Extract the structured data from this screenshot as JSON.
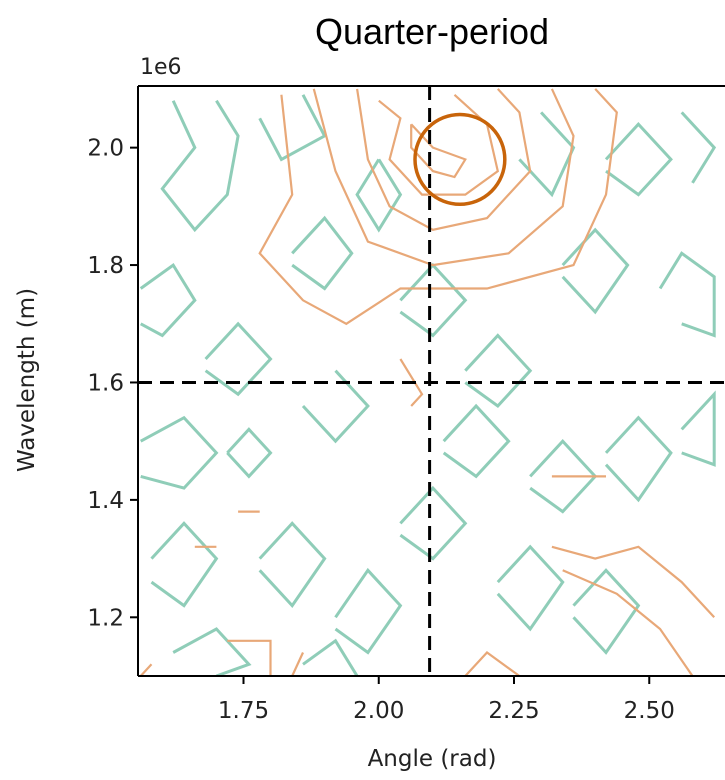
{
  "chart_data": {
    "type": "contour",
    "title": "Quarter-period",
    "xlabel": "Angle (rad)",
    "ylabel": "Wavelength (m)",
    "y_offset_label": "1e6",
    "xlim": [
      1.555,
      2.64
    ],
    "ylim": [
      1100000,
      2105000
    ],
    "x_ticks": [
      1.75,
      2.0,
      2.25,
      2.5
    ],
    "x_tick_labels": [
      "1.75",
      "2.00",
      "2.25",
      "2.50"
    ],
    "y_ticks": [
      1200000,
      1400000,
      1600000,
      1800000,
      2000000
    ],
    "y_tick_labels": [
      "1.2",
      "1.4",
      "1.6",
      "1.8",
      "2.0"
    ],
    "reference_lines": {
      "vertical_x": 2.094,
      "horizontal_y": 1600000,
      "style": "dashed",
      "color": "#000000"
    },
    "highlight_circle": {
      "x": 2.15,
      "y": 1980000,
      "radius_x": 0.083,
      "color": "#c8640a"
    },
    "series": [
      {
        "color": "#8fcdb8",
        "levels": [
          [
            [
              1.62,
              2.08
            ],
            [
              1.66,
              2.0
            ],
            [
              1.6,
              1.93
            ],
            [
              1.66,
              1.86
            ],
            [
              1.72,
              1.92
            ],
            [
              1.74,
              2.02
            ],
            [
              1.7,
              2.08
            ]
          ],
          [
            [
              1.78,
              2.05
            ],
            [
              1.82,
              1.98
            ],
            [
              1.9,
              2.02
            ],
            [
              1.86,
              2.09
            ]
          ],
          [
            [
              1.56,
              1.76
            ],
            [
              1.62,
              1.8
            ],
            [
              1.66,
              1.74
            ],
            [
              1.6,
              1.68
            ],
            [
              1.56,
              1.7
            ]
          ],
          [
            [
              1.68,
              1.64
            ],
            [
              1.74,
              1.7
            ],
            [
              1.8,
              1.64
            ],
            [
              1.74,
              1.58
            ],
            [
              1.68,
              1.62
            ]
          ],
          [
            [
              1.84,
              1.82
            ],
            [
              1.9,
              1.88
            ],
            [
              1.95,
              1.82
            ],
            [
              1.9,
              1.76
            ],
            [
              1.84,
              1.8
            ]
          ],
          [
            [
              2.3,
              2.06
            ],
            [
              2.36,
              2.0
            ],
            [
              2.32,
              1.92
            ],
            [
              2.26,
              1.98
            ]
          ],
          [
            [
              2.42,
              1.98
            ],
            [
              2.48,
              2.04
            ],
            [
              2.54,
              1.98
            ],
            [
              2.48,
              1.92
            ],
            [
              2.42,
              1.96
            ]
          ],
          [
            [
              2.56,
              2.06
            ],
            [
              2.62,
              2.0
            ],
            [
              2.58,
              1.94
            ]
          ],
          [
            [
              2.34,
              1.8
            ],
            [
              2.4,
              1.86
            ],
            [
              2.46,
              1.8
            ],
            [
              2.4,
              1.72
            ],
            [
              2.34,
              1.78
            ]
          ],
          [
            [
              2.52,
              1.76
            ],
            [
              2.56,
              1.82
            ],
            [
              2.62,
              1.78
            ],
            [
              2.62,
              1.68
            ],
            [
              2.56,
              1.7
            ]
          ],
          [
            [
              2.04,
              1.74
            ],
            [
              2.1,
              1.8
            ],
            [
              2.16,
              1.74
            ],
            [
              2.1,
              1.68
            ],
            [
              2.04,
              1.72
            ]
          ],
          [
            [
              1.56,
              1.5
            ],
            [
              1.64,
              1.54
            ],
            [
              1.7,
              1.48
            ],
            [
              1.64,
              1.42
            ],
            [
              1.56,
              1.44
            ]
          ],
          [
            [
              1.72,
              1.48
            ],
            [
              1.76,
              1.44
            ],
            [
              1.8,
              1.48
            ],
            [
              1.76,
              1.52
            ],
            [
              1.72,
              1.48
            ]
          ],
          [
            [
              1.86,
              1.56
            ],
            [
              1.92,
              1.5
            ],
            [
              1.98,
              1.56
            ],
            [
              1.92,
              1.62
            ]
          ],
          [
            [
              1.58,
              1.3
            ],
            [
              1.64,
              1.36
            ],
            [
              1.7,
              1.3
            ],
            [
              1.64,
              1.22
            ],
            [
              1.58,
              1.26
            ]
          ],
          [
            [
              1.78,
              1.3
            ],
            [
              1.84,
              1.36
            ],
            [
              1.9,
              1.3
            ],
            [
              1.84,
              1.22
            ],
            [
              1.78,
              1.28
            ]
          ],
          [
            [
              1.92,
              1.2
            ],
            [
              1.98,
              1.28
            ],
            [
              2.04,
              1.22
            ],
            [
              1.98,
              1.14
            ],
            [
              1.92,
              1.18
            ]
          ],
          [
            [
              2.04,
              1.36
            ],
            [
              2.1,
              1.42
            ],
            [
              2.16,
              1.36
            ],
            [
              2.1,
              1.3
            ],
            [
              2.04,
              1.34
            ]
          ],
          [
            [
              2.12,
              1.5
            ],
            [
              2.18,
              1.56
            ],
            [
              2.24,
              1.5
            ],
            [
              2.18,
              1.44
            ],
            [
              2.12,
              1.48
            ]
          ],
          [
            [
              2.28,
              1.44
            ],
            [
              2.34,
              1.5
            ],
            [
              2.4,
              1.44
            ],
            [
              2.34,
              1.38
            ],
            [
              2.28,
              1.42
            ]
          ],
          [
            [
              2.42,
              1.48
            ],
            [
              2.48,
              1.54
            ],
            [
              2.54,
              1.48
            ],
            [
              2.48,
              1.4
            ],
            [
              2.42,
              1.46
            ]
          ],
          [
            [
              2.56,
              1.52
            ],
            [
              2.62,
              1.58
            ],
            [
              2.62,
              1.46
            ],
            [
              2.56,
              1.48
            ]
          ],
          [
            [
              2.22,
              1.26
            ],
            [
              2.28,
              1.32
            ],
            [
              2.34,
              1.26
            ],
            [
              2.28,
              1.18
            ],
            [
              2.22,
              1.24
            ]
          ],
          [
            [
              2.36,
              1.22
            ],
            [
              2.42,
              1.28
            ],
            [
              2.48,
              1.22
            ],
            [
              2.42,
              1.14
            ],
            [
              2.36,
              1.2
            ]
          ],
          [
            [
              1.62,
              1.14
            ],
            [
              1.7,
              1.18
            ],
            [
              1.76,
              1.12
            ],
            [
              1.7,
              1.1
            ]
          ],
          [
            [
              1.86,
              1.12
            ],
            [
              1.92,
              1.16
            ],
            [
              1.96,
              1.1
            ]
          ],
          [
            [
              2.0,
              1.98
            ],
            [
              2.04,
              1.92
            ],
            [
              2.0,
              1.86
            ],
            [
              1.96,
              1.92
            ],
            [
              2.0,
              1.98
            ]
          ],
          [
            [
              2.16,
              1.62
            ],
            [
              2.22,
              1.68
            ],
            [
              2.28,
              1.62
            ],
            [
              2.22,
              1.56
            ],
            [
              2.16,
              1.6
            ]
          ]
        ]
      },
      {
        "color": "#e8a878",
        "levels": [
          [
            [
              2.06,
              2.04
            ],
            [
              2.1,
              2.0
            ],
            [
              2.16,
              1.98
            ],
            [
              2.14,
              1.95
            ],
            [
              2.1,
              1.96
            ],
            [
              2.06,
              2.0
            ],
            [
              2.06,
              2.04
            ]
          ],
          [
            [
              2.0,
              2.08
            ],
            [
              2.04,
              2.05
            ],
            [
              2.02,
              1.98
            ],
            [
              2.08,
              1.92
            ],
            [
              2.16,
              1.92
            ],
            [
              2.22,
              1.96
            ],
            [
              2.2,
              2.04
            ],
            [
              2.14,
              2.09
            ]
          ],
          [
            [
              1.96,
              2.1
            ],
            [
              1.98,
              1.98
            ],
            [
              2.02,
              1.9
            ],
            [
              2.1,
              1.86
            ],
            [
              2.2,
              1.88
            ],
            [
              2.28,
              1.96
            ],
            [
              2.26,
              2.06
            ],
            [
              2.22,
              2.1
            ]
          ],
          [
            [
              1.88,
              2.1
            ],
            [
              1.92,
              1.96
            ],
            [
              1.98,
              1.84
            ],
            [
              2.1,
              1.8
            ],
            [
              2.24,
              1.82
            ],
            [
              2.34,
              1.9
            ],
            [
              2.36,
              2.02
            ],
            [
              2.32,
              2.1
            ]
          ],
          [
            [
              1.82,
              2.09
            ],
            [
              1.84,
              1.92
            ],
            [
              1.78,
              1.82
            ],
            [
              1.86,
              1.74
            ],
            [
              1.94,
              1.7
            ],
            [
              2.04,
              1.76
            ],
            [
              2.2,
              1.76
            ],
            [
              2.36,
              1.8
            ],
            [
              2.42,
              1.92
            ],
            [
              2.44,
              2.06
            ],
            [
              2.4,
              2.1
            ]
          ],
          [
            [
              2.32,
              1.44
            ],
            [
              2.42,
              1.44
            ]
          ],
          [
            [
              2.32,
              1.32
            ],
            [
              2.4,
              1.3
            ],
            [
              2.48,
              1.32
            ],
            [
              2.56,
              1.26
            ],
            [
              2.62,
              1.2
            ]
          ],
          [
            [
              2.34,
              1.28
            ],
            [
              2.44,
              1.24
            ],
            [
              2.52,
              1.18
            ],
            [
              2.58,
              1.1
            ]
          ],
          [
            [
              1.72,
              1.16
            ],
            [
              1.8,
              1.16
            ],
            [
              1.8,
              1.1
            ]
          ],
          [
            [
              1.66,
              1.32
            ],
            [
              1.7,
              1.32
            ]
          ],
          [
            [
              1.74,
              1.38
            ],
            [
              1.78,
              1.38
            ]
          ],
          [
            [
              1.84,
              1.1
            ],
            [
              1.86,
              1.14
            ]
          ],
          [
            [
              2.04,
              1.64
            ],
            [
              2.08,
              1.58
            ],
            [
              2.06,
              1.56
            ]
          ],
          [
            [
              2.16,
              1.1
            ],
            [
              2.2,
              1.14
            ],
            [
              2.26,
              1.1
            ]
          ],
          [
            [
              1.56,
              1.1
            ],
            [
              1.58,
              1.12
            ]
          ]
        ]
      }
    ]
  }
}
